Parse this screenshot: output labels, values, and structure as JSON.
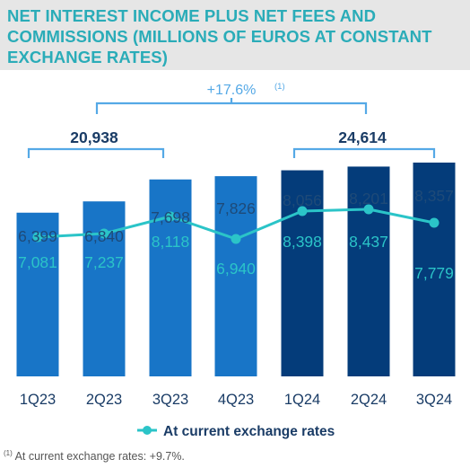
{
  "title": "NET INTEREST INCOME PLUS NET FEES AND COMMISSIONS (MILLIONS OF EUROS AT CONSTANT EXCHANGE RATES)",
  "footnote": {
    "marker": "(1)",
    "text": " At current exchange rates:  +9.7%."
  },
  "colors": {
    "bar_2023": "#1875c7",
    "bar_2024": "#043c7a",
    "line": "#2bc4c8",
    "bracket": "#55a9e6",
    "title": "#2aacb8"
  },
  "chart_data": {
    "type": "bar",
    "categories": [
      "1Q23",
      "2Q23",
      "3Q23",
      "4Q23",
      "1Q24",
      "2Q24",
      "3Q24"
    ],
    "series": [
      {
        "values": [
          6399,
          6840,
          7698,
          7826,
          8056,
          8201,
          8357
        ]
      },
      {
        "name": "At current exchange rates",
        "type": "line",
        "values": [
          7081,
          7237,
          8118,
          6940,
          8398,
          8437,
          7779
        ]
      }
    ],
    "value_labels": [
      "6,399",
      "6,840",
      "7,698",
      "7,826",
      "8,056",
      "8,201",
      "8,357"
    ],
    "line_labels": [
      "7,081",
      "7,237",
      "8,118",
      "6,940",
      "8,398",
      "8,437",
      "7,779"
    ],
    "ylim": [
      0,
      9000
    ],
    "legend_position": "bottom",
    "annotations": {
      "growth": {
        "label": "+17.6%",
        "marker": "(1)"
      },
      "totals": [
        {
          "label": "20,938",
          "from": "1Q23",
          "to": "3Q23"
        },
        {
          "label": "24,614",
          "from": "1Q24",
          "to": "3Q24"
        }
      ]
    }
  }
}
